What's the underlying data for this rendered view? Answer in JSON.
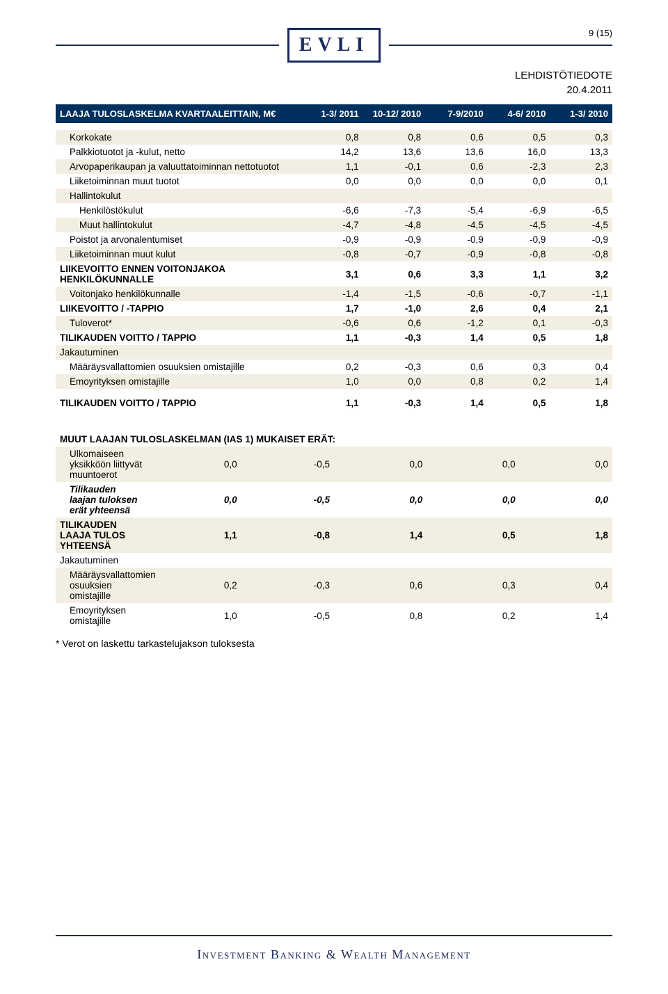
{
  "logo": "EVLI",
  "pageNumber": "9 (15)",
  "docType": "LEHDISTÖTIEDOTE",
  "docDate": "20.4.2011",
  "footer": "Investment Banking & Wealth Management",
  "footnote": "* Verot on laskettu tarkastelujakson tuloksesta",
  "table1": {
    "header": [
      "LAAJA TULOSLASKELMA KVARTAALEITTAIN, M€",
      "1-3/ 2011",
      "10-12/ 2010",
      "7-9/2010",
      "4-6/ 2010",
      "1-3/ 2010"
    ],
    "rows": [
      {
        "label": "Korkokate",
        "vals": [
          "0,8",
          "0,8",
          "0,6",
          "0,5",
          "0,3"
        ],
        "indent": 1,
        "shade": true
      },
      {
        "label": "Palkkiotuotot ja -kulut, netto",
        "vals": [
          "14,2",
          "13,6",
          "13,6",
          "16,0",
          "13,3"
        ],
        "indent": 1
      },
      {
        "label": "Arvopaperikaupan ja valuuttatoiminnan nettotuotot",
        "vals": [
          "1,1",
          "-0,1",
          "0,6",
          "-2,3",
          "2,3"
        ],
        "indent": 1,
        "shade": true
      },
      {
        "label": "Liiketoiminnan muut tuotot",
        "vals": [
          "0,0",
          "0,0",
          "0,0",
          "0,0",
          "0,1"
        ],
        "indent": 1
      },
      {
        "label": "Hallintokulut",
        "vals": [
          "",
          "",
          "",
          "",
          ""
        ],
        "indent": 1,
        "shade": true
      },
      {
        "label": "Henkilöstökulut",
        "vals": [
          "-6,6",
          "-7,3",
          "-5,4",
          "-6,9",
          "-6,5"
        ],
        "indent": 2
      },
      {
        "label": "Muut hallintokulut",
        "vals": [
          "-4,7",
          "-4,8",
          "-4,5",
          "-4,5",
          "-4,5"
        ],
        "indent": 2,
        "shade": true
      },
      {
        "label": "Poistot ja arvonalentumiset",
        "vals": [
          "-0,9",
          "-0,9",
          "-0,9",
          "-0,9",
          "-0,9"
        ],
        "indent": 1
      },
      {
        "label": "Liiketoiminnan muut kulut",
        "vals": [
          "-0,8",
          "-0,7",
          "-0,9",
          "-0,8",
          "-0,8"
        ],
        "indent": 1,
        "shade": true
      },
      {
        "label": "LIIKEVOITTO ENNEN VOITONJAKOA HENKILÖKUNNALLE",
        "vals": [
          "3,1",
          "0,6",
          "3,3",
          "1,1",
          "3,2"
        ],
        "bold": true
      },
      {
        "label": "Voitonjako henkilökunnalle",
        "vals": [
          "-1,4",
          "-1,5",
          "-0,6",
          "-0,7",
          "-1,1"
        ],
        "indent": 1,
        "shade": true
      },
      {
        "label": "LIIKEVOITTO / -TAPPIO",
        "vals": [
          "1,7",
          "-1,0",
          "2,6",
          "0,4",
          "2,1"
        ],
        "bold": true
      },
      {
        "label": "Tuloverot*",
        "vals": [
          "-0,6",
          "0,6",
          "-1,2",
          "0,1",
          "-0,3"
        ],
        "indent": 1,
        "shade": true
      },
      {
        "label": "TILIKAUDEN VOITTO / TAPPIO",
        "vals": [
          "1,1",
          "-0,3",
          "1,4",
          "0,5",
          "1,8"
        ],
        "bold": true
      },
      {
        "label": "Jakautuminen",
        "vals": [
          "",
          "",
          "",
          "",
          ""
        ],
        "shade": true
      },
      {
        "label": "Määräysvallattomien osuuksien omistajille",
        "vals": [
          "0,2",
          "-0,3",
          "0,6",
          "0,3",
          "0,4"
        ],
        "indent": 1
      },
      {
        "label": "Emoyrityksen omistajille",
        "vals": [
          "1,0",
          "0,0",
          "0,8",
          "0,2",
          "1,4"
        ],
        "indent": 1,
        "shade": true
      }
    ],
    "totalRow": {
      "label": "TILIKAUDEN VOITTO / TAPPIO",
      "vals": [
        "1,1",
        "-0,3",
        "1,4",
        "0,5",
        "1,8"
      ]
    }
  },
  "table2": {
    "title": "MUUT LAAJAN TULOSLASKELMAN (IAS 1) MUKAISET ERÄT:",
    "rows": [
      {
        "label": "Ulkomaiseen yksikköön liittyvät muuntoerot",
        "vals": [
          "0,0",
          "-0,5",
          "0,0",
          "0,0",
          "0,0"
        ],
        "indent": 1,
        "shade": true
      },
      {
        "label": "Tilikauden laajan tuloksen erät yhteensä",
        "vals": [
          "0,0",
          "-0,5",
          "0,0",
          "0,0",
          "0,0"
        ],
        "indent": 1,
        "bold": true,
        "italic": true
      },
      {
        "label": "TILIKAUDEN LAAJA TULOS YHTEENSÄ",
        "vals": [
          "1,1",
          "-0,8",
          "1,4",
          "0,5",
          "1,8"
        ],
        "bold": true,
        "shade": true
      },
      {
        "label": "Jakautuminen",
        "vals": [
          "",
          "",
          "",
          "",
          ""
        ]
      },
      {
        "label": "Määräysvallattomien osuuksien omistajille",
        "vals": [
          "0,2",
          "-0,3",
          "0,6",
          "0,3",
          "0,4"
        ],
        "indent": 1,
        "shade": true
      },
      {
        "label": "Emoyrityksen omistajille",
        "vals": [
          "1,0",
          "-0,5",
          "0,8",
          "0,2",
          "1,4"
        ],
        "indent": 1
      }
    ]
  }
}
